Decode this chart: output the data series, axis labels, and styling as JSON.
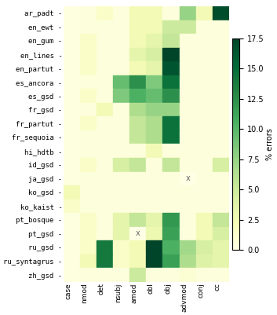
{
  "treebanks": [
    "ar_padt",
    "en_ewt",
    "en_gum",
    "en_lines",
    "en_partut",
    "es_ancora",
    "es_gsd",
    "fr_gsd",
    "fr_partut",
    "fr_sequoia",
    "hi_hdtb",
    "id_gsd",
    "ja_gsd",
    "ko_gsd",
    "ko_kaist",
    "pt_bosque",
    "pt_gsd",
    "ru_gsd",
    "ru_syntagrus",
    "zh_gsd"
  ],
  "relations": [
    "case",
    "nmod",
    "det",
    "nsubj",
    "amod",
    "obl",
    "obj",
    "advmod",
    "conj",
    "cc"
  ],
  "data": [
    [
      0.3,
      0.5,
      1.5,
      0.5,
      2.5,
      2.5,
      0.5,
      7.5,
      2.5,
      17.0
    ],
    [
      0.3,
      0.5,
      0.5,
      0.5,
      2.5,
      2.5,
      5.0,
      5.0,
      0.5,
      0.5
    ],
    [
      0.3,
      1.5,
      0.5,
      0.5,
      2.5,
      3.5,
      5.5,
      0.5,
      0.5,
      0.5
    ],
    [
      0.3,
      1.5,
      0.5,
      0.5,
      3.5,
      4.5,
      17.5,
      0.5,
      0.5,
      0.5
    ],
    [
      0.3,
      1.5,
      0.5,
      0.5,
      2.5,
      3.5,
      16.5,
      0.5,
      0.5,
      0.5
    ],
    [
      0.3,
      0.5,
      0.5,
      9.5,
      12.5,
      8.5,
      14.5,
      0.5,
      0.5,
      0.5
    ],
    [
      0.3,
      1.5,
      0.5,
      8.5,
      10.5,
      9.5,
      12.5,
      0.5,
      0.5,
      0.5
    ],
    [
      0.3,
      0.5,
      2.5,
      0.5,
      6.5,
      7.5,
      7.5,
      0.5,
      0.5,
      0.5
    ],
    [
      0.3,
      1.5,
      0.5,
      0.5,
      5.5,
      6.5,
      14.5,
      0.5,
      0.5,
      0.5
    ],
    [
      0.3,
      0.5,
      0.5,
      0.5,
      5.5,
      6.5,
      14.5,
      0.5,
      0.5,
      0.5
    ],
    [
      0.3,
      0.5,
      0.5,
      0.5,
      0.5,
      2.5,
      0.5,
      0.5,
      0.5,
      0.5
    ],
    [
      0.3,
      1.5,
      0.5,
      4.5,
      5.5,
      0.5,
      5.5,
      0.5,
      0.5,
      4.5
    ],
    [
      0.3,
      0.5,
      0.5,
      0.5,
      0.5,
      0.5,
      0.5,
      null,
      0.5,
      0.5
    ],
    [
      2.5,
      0.5,
      0.5,
      0.5,
      0.5,
      0.5,
      0.5,
      0.5,
      0.5,
      0.5
    ],
    [
      1.5,
      0.5,
      0.5,
      0.5,
      0.5,
      0.5,
      0.5,
      0.5,
      0.5,
      0.5
    ],
    [
      0.3,
      1.5,
      0.5,
      3.5,
      5.5,
      3.5,
      12.0,
      0.5,
      2.5,
      5.5
    ],
    [
      0.3,
      1.5,
      0.5,
      3.5,
      null,
      3.0,
      11.5,
      0.5,
      2.5,
      4.5
    ],
    [
      0.3,
      1.5,
      14.0,
      1.5,
      2.5,
      17.5,
      10.5,
      7.0,
      4.5,
      3.5
    ],
    [
      0.3,
      2.5,
      14.0,
      1.5,
      2.5,
      17.5,
      11.5,
      6.5,
      4.0,
      3.5
    ],
    [
      0.3,
      0.5,
      0.5,
      0.5,
      5.0,
      0.5,
      0.5,
      1.0,
      0.5,
      0.5
    ]
  ],
  "null_marker": "x",
  "vmin": 0.0,
  "vmax": 17.5,
  "colorbar_label": "% errors",
  "colorbar_ticks": [
    0.0,
    2.5,
    5.0,
    7.5,
    10.0,
    12.5,
    15.0,
    17.5
  ],
  "cmap": "YlGn",
  "figsize": [
    3.53,
    4.01
  ],
  "dpi": 100,
  "tick_fontsize": 6.5,
  "cbar_fontsize": 7
}
